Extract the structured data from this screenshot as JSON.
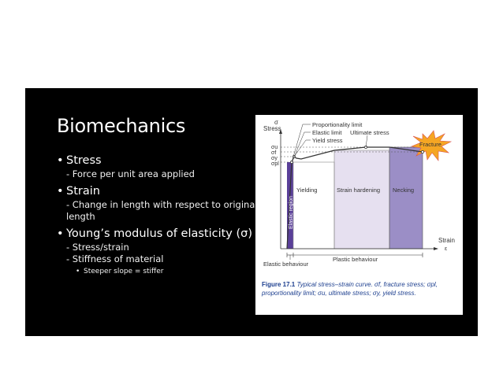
{
  "slide": {
    "title": "Biomechanics",
    "bullets": [
      {
        "text": "Stress",
        "subs": [
          "- Force per unit area applied"
        ]
      },
      {
        "text": "Strain",
        "subs": [
          "- Change in length with respect to original length"
        ]
      },
      {
        "text": "Young’s modulus of elasticity (σ)",
        "subs": [
          "- Stress/strain",
          "- Stiffness of material"
        ],
        "subsubs": [
          "Steeper slope = stiffer"
        ]
      }
    ]
  },
  "figure": {
    "y_axis_symbol": "σ",
    "y_axis_label": "Stress",
    "x_axis_label": "Strain",
    "x_axis_symbol": "ε",
    "sigma_labels": [
      "σu",
      "σf",
      "σy",
      "σpl"
    ],
    "annotations": {
      "proportionality": "Proportionality limit",
      "elastic_limit": "Elastic limit",
      "yield_stress": "Yield stress",
      "ultimate": "Ultimate stress",
      "fracture": "Fracture"
    },
    "regions": {
      "elastic": "Elastic region",
      "yielding": "Yielding",
      "strain_hardening": "Strain hardening",
      "necking": "Necking"
    },
    "behaviours": {
      "elastic": "Elastic behaviour",
      "plastic": "Plastic behaviour"
    },
    "colors": {
      "elastic_region": "#5a3f99",
      "strain_hardening_region": "#e6e0f0",
      "necking_region": "#9b8ec6",
      "fracture_burst": "#f5a623",
      "caption": "#1d3f8f"
    },
    "caption": {
      "label": "Figure 17.1",
      "text": "Typical stress–strain curve. σf, fracture stress; σpl, proportionality limit; σu, ultimate stress; σy, yield stress."
    }
  }
}
